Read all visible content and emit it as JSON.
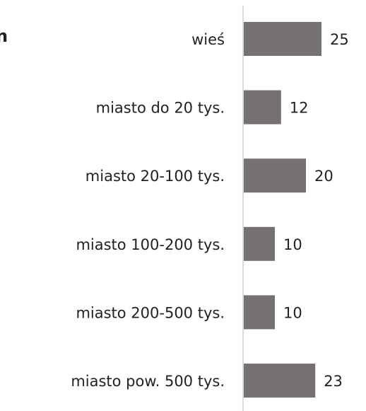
{
  "chart_data": {
    "type": "bar",
    "orientation": "horizontal",
    "title": "n",
    "categories": [
      "wieś",
      "miasto do 20 tys.",
      "miasto 20-100 tys.",
      "miasto 100-200 tys.",
      "miasto 200-500 tys.",
      "miasto pow. 500 tys."
    ],
    "values": [
      25,
      12,
      20,
      10,
      10,
      23
    ],
    "color": "#757171"
  }
}
